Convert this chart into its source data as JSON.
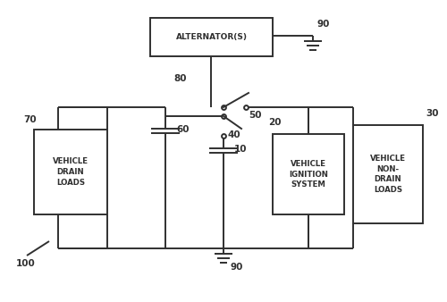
{
  "background_color": "#ffffff",
  "line_color": "#303030",
  "line_width": 1.4,
  "labels": {
    "alternator": "ALTERNATOR(S)",
    "vehicle_drain": "VEHICLE\nDRAIN\nLOADS",
    "vehicle_ignition": "VEHICLE\nIGNITION\nSYSTEM",
    "vehicle_nondrain": "VEHICLE\nNON-\nDRAIN\nLOADS"
  },
  "numbers": {
    "n10": "10",
    "n20": "20",
    "n30": "30",
    "n40": "40",
    "n50": "50",
    "n60": "60",
    "n70": "70",
    "n80": "80",
    "n90": "90",
    "n100": "100"
  },
  "font_size": 6.5,
  "num_font_size": 7.5
}
